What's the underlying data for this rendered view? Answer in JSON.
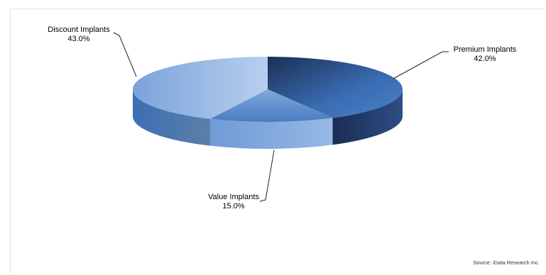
{
  "chart_data": {
    "type": "pie",
    "title": "",
    "slices": [
      {
        "label": "Discount Implants",
        "value": 43.0,
        "display": "43.0%"
      },
      {
        "label": "Premium Implants",
        "value": 42.0,
        "display": "42.0%"
      },
      {
        "label": "Value Implants",
        "value": 15.0,
        "display": "15.0%"
      }
    ],
    "colors": {
      "discount": "#8eb4e3",
      "premium": "#1f3864",
      "value": "#4f81bd"
    },
    "source": "Source: iData Research Inc."
  }
}
